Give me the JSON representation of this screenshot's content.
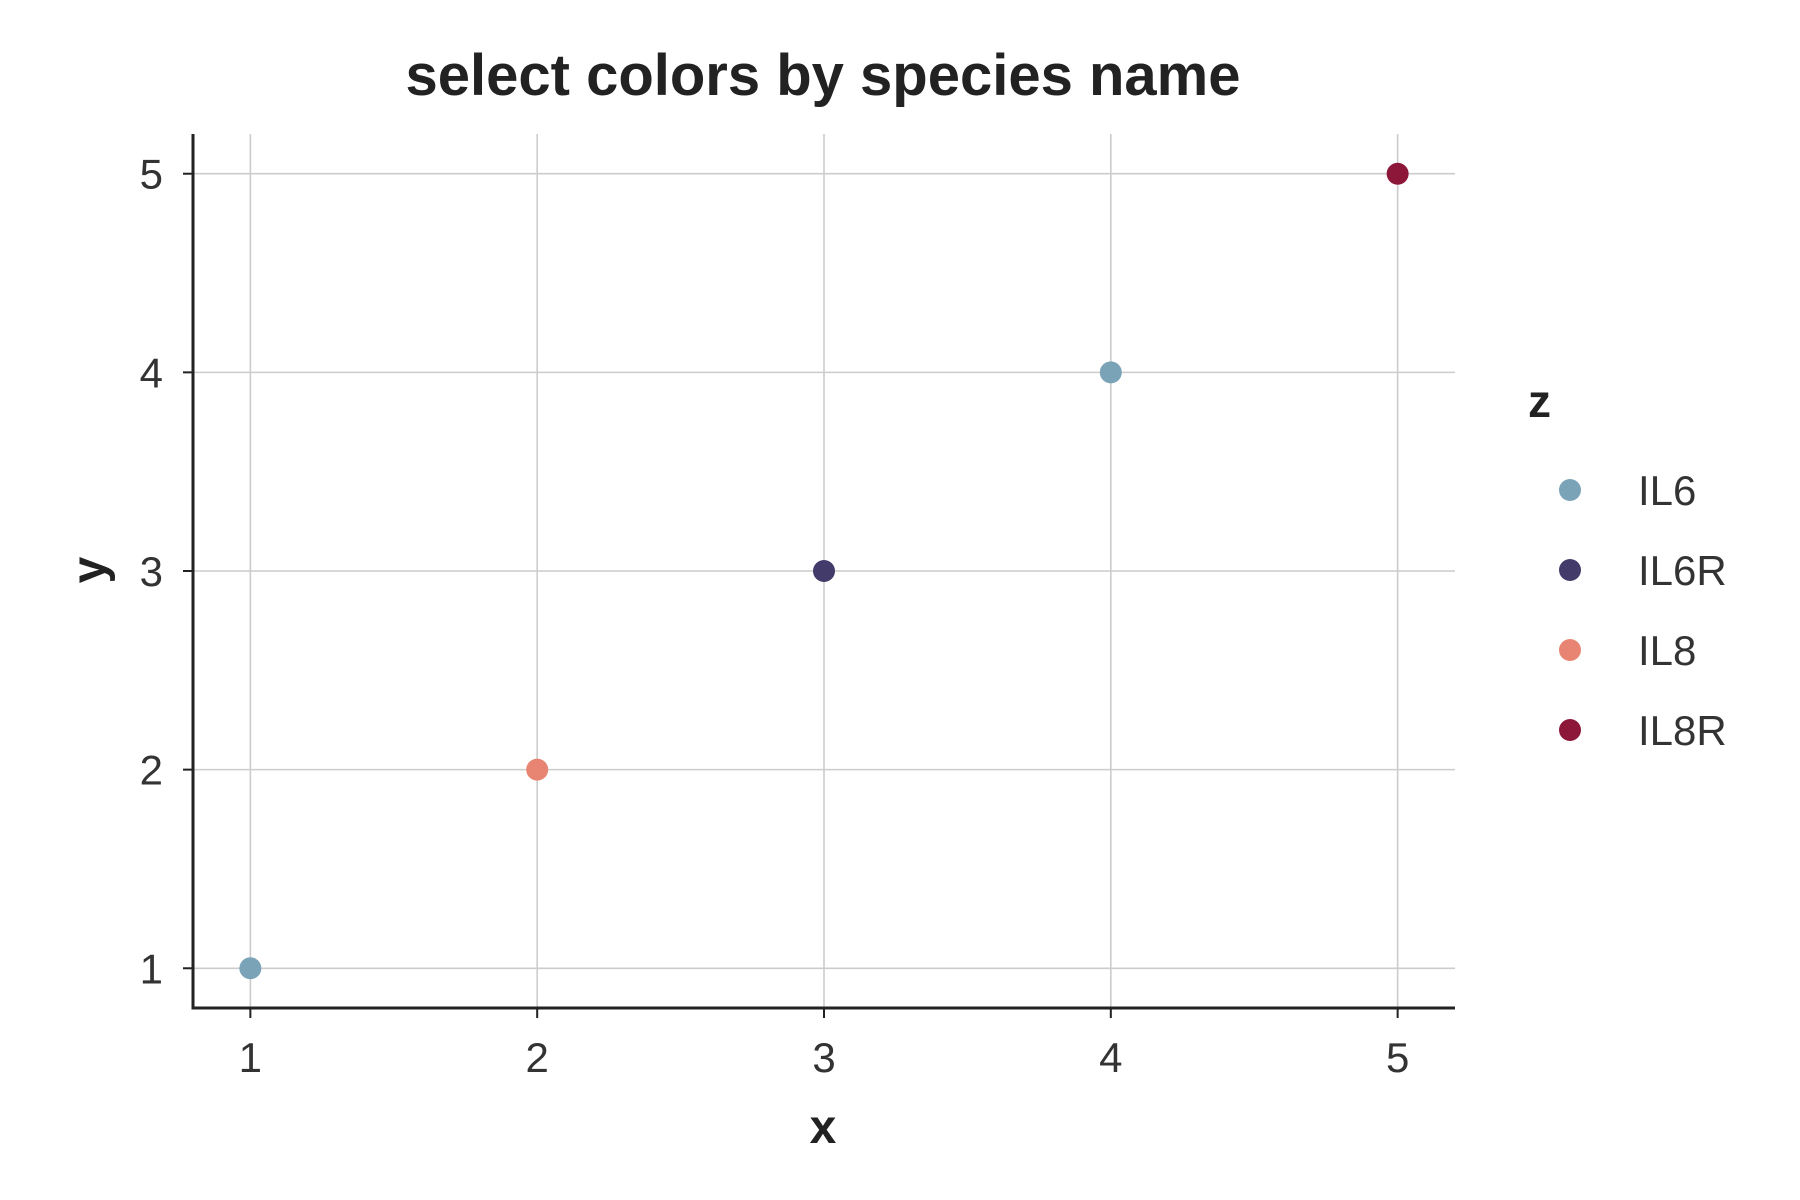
{
  "chart_data": {
    "type": "scatter",
    "title": "select colors by species name",
    "xlabel": "x",
    "ylabel": "y",
    "xlim": [
      0.8,
      5.2
    ],
    "ylim": [
      0.8,
      5.2
    ],
    "xticks": [
      1,
      2,
      3,
      4,
      5
    ],
    "yticks": [
      1,
      2,
      3,
      4,
      5
    ],
    "grid": true,
    "legend_title": "z",
    "legend_position": "right",
    "series": [
      {
        "name": "IL6",
        "color": "#7ba3b8",
        "points": [
          {
            "x": 1,
            "y": 1
          },
          {
            "x": 4,
            "y": 4
          }
        ]
      },
      {
        "name": "IL6R",
        "color": "#433c6b",
        "points": [
          {
            "x": 3,
            "y": 3
          }
        ]
      },
      {
        "name": "IL8",
        "color": "#e88572",
        "points": [
          {
            "x": 2,
            "y": 2
          }
        ]
      },
      {
        "name": "IL8R",
        "color": "#8c1738",
        "points": [
          {
            "x": 5,
            "y": 5
          }
        ]
      }
    ]
  }
}
